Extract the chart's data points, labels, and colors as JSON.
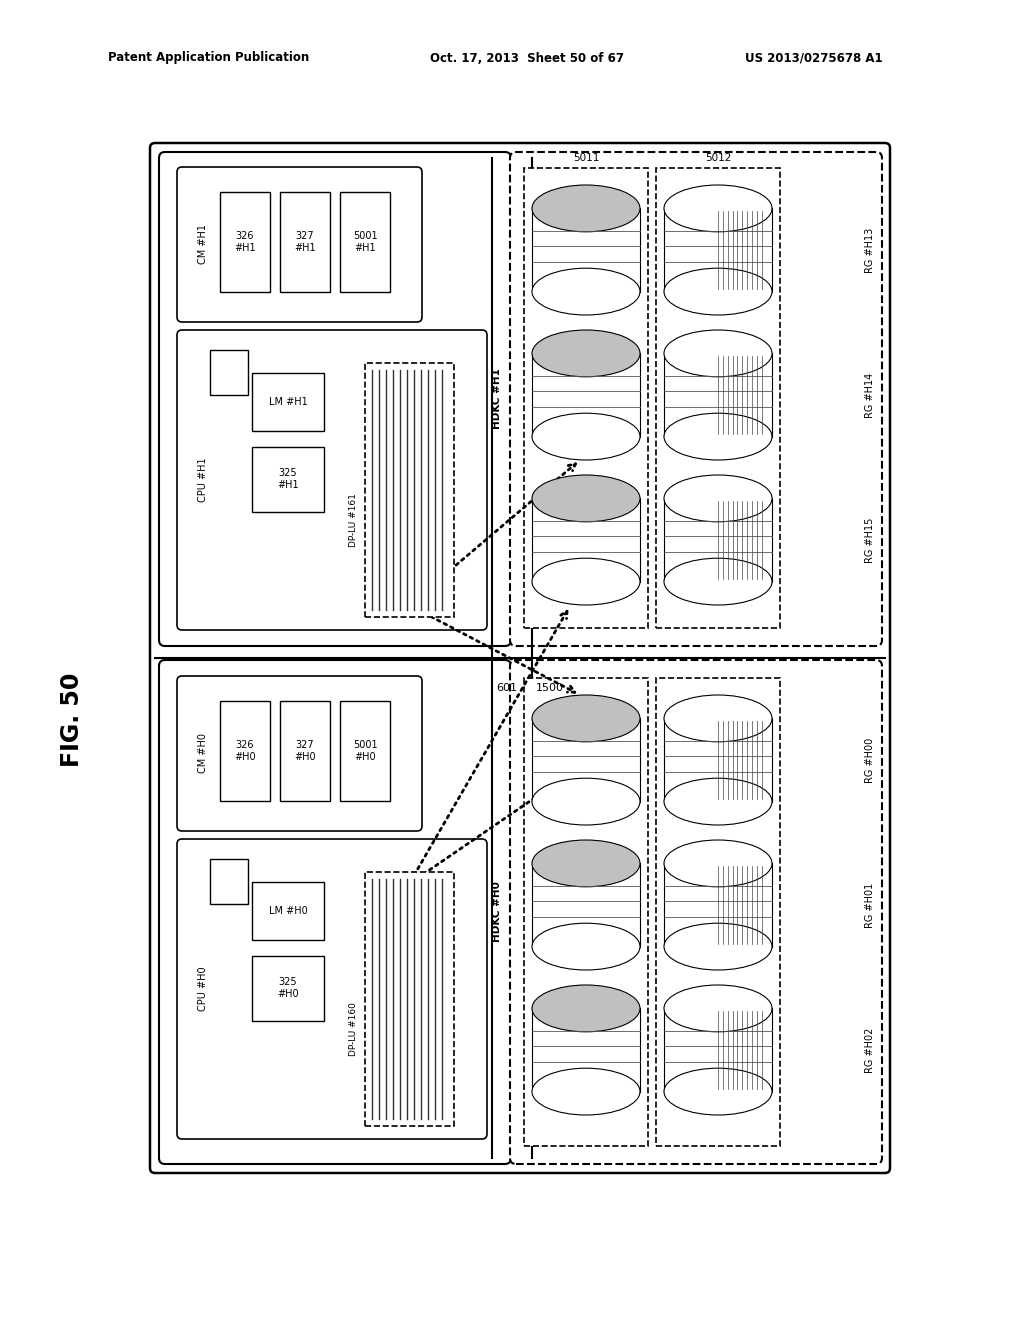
{
  "title_left": "Patent Application Publication",
  "title_center": "Oct. 17, 2013  Sheet 50 of 67",
  "title_right": "US 2013/0275678 A1",
  "bg_color": "#ffffff",
  "lc": "#000000"
}
